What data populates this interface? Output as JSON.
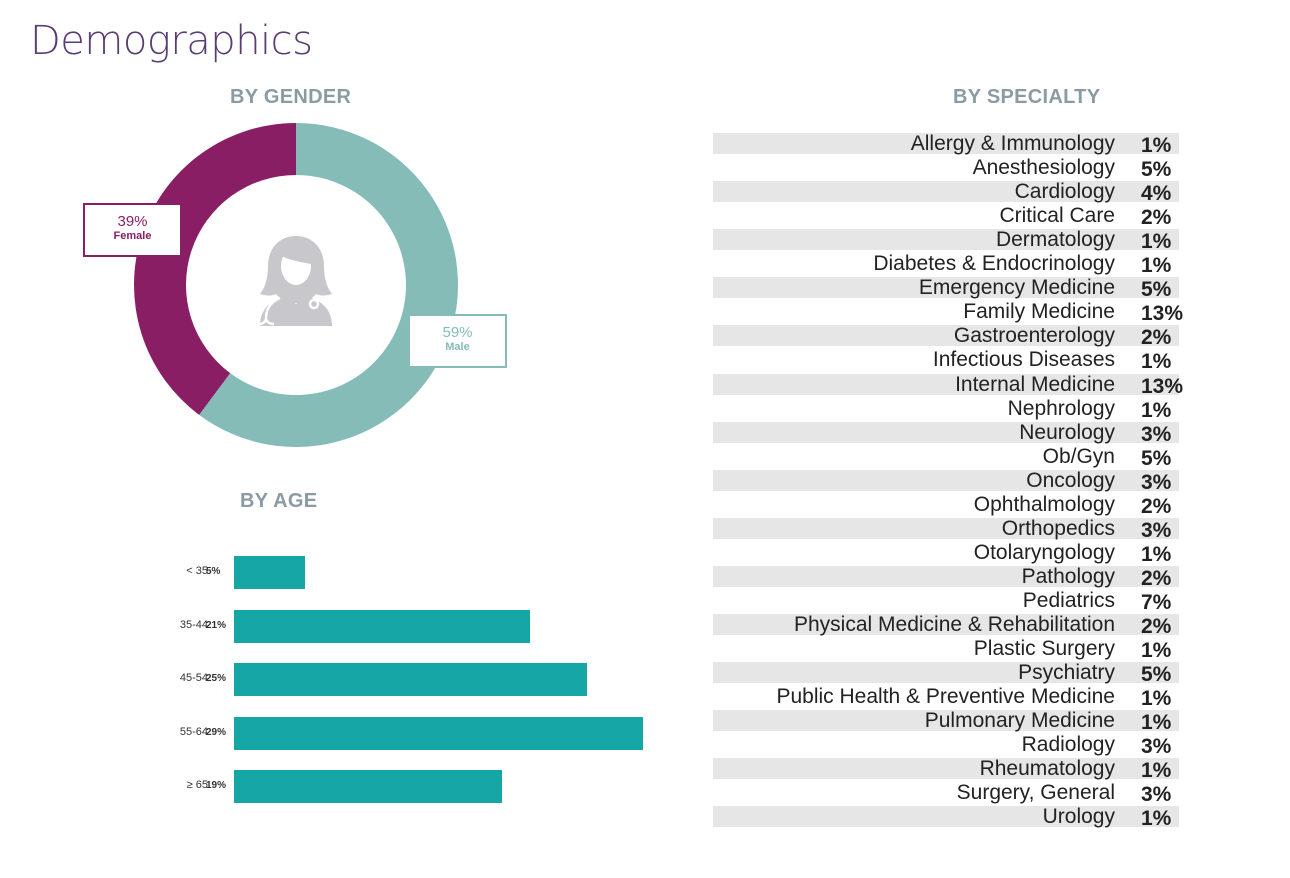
{
  "title": "Demographics",
  "colors": {
    "female": "#8a1e64",
    "male": "#85bcb7",
    "age_bar": "#16a6a6",
    "row_shade": "#e6e6e6",
    "title": "#5a3d72",
    "section_header": "#8b9ba3"
  },
  "chart_data": [
    {
      "type": "pie",
      "variant": "donut",
      "title": "BY GENDER",
      "center_icon": "female-doctor-icon",
      "slices": [
        {
          "label": "Male",
          "value": 59,
          "value_label": "59%",
          "color": "#85bcb7"
        },
        {
          "label": "Female",
          "value": 39,
          "value_label": "39%",
          "color": "#8a1e64"
        }
      ]
    },
    {
      "type": "bar",
      "orientation": "horizontal",
      "title": "BY AGE",
      "categories": [
        "< 35",
        "35-44",
        "45-54",
        "55-64",
        "≥ 65"
      ],
      "values": [
        5,
        21,
        25,
        29,
        19
      ],
      "value_labels": [
        "5%",
        "21%",
        "25%",
        "29%",
        "19%"
      ],
      "grid": false
    },
    {
      "type": "table",
      "title": "BY SPECIALTY",
      "rows": [
        {
          "name": "Allergy & Immunology",
          "value": "1%"
        },
        {
          "name": "Anesthesiology",
          "value": "5%"
        },
        {
          "name": "Cardiology",
          "value": "4%"
        },
        {
          "name": "Critical Care",
          "value": "2%"
        },
        {
          "name": "Dermatology",
          "value": "1%"
        },
        {
          "name": "Diabetes & Endocrinology",
          "value": "1%"
        },
        {
          "name": "Emergency Medicine",
          "value": "5%"
        },
        {
          "name": "Family Medicine",
          "value": "13%"
        },
        {
          "name": "Gastroenterology",
          "value": "2%"
        },
        {
          "name": "Infectious Diseases",
          "value": "1%"
        },
        {
          "name": "Internal Medicine",
          "value": "13%"
        },
        {
          "name": "Nephrology",
          "value": "1%"
        },
        {
          "name": "Neurology",
          "value": "3%"
        },
        {
          "name": "Ob/Gyn",
          "value": "5%"
        },
        {
          "name": "Oncology",
          "value": "3%"
        },
        {
          "name": "Ophthalmology",
          "value": "2%"
        },
        {
          "name": "Orthopedics",
          "value": "3%"
        },
        {
          "name": "Otolaryngology",
          "value": "1%"
        },
        {
          "name": "Pathology",
          "value": "2%"
        },
        {
          "name": "Pediatrics",
          "value": "7%"
        },
        {
          "name": "Physical Medicine & Rehabilitation",
          "value": "2%"
        },
        {
          "name": "Plastic Surgery",
          "value": "1%"
        },
        {
          "name": "Psychiatry",
          "value": "5%"
        },
        {
          "name": "Public Health & Preventive Medicine",
          "value": "1%"
        },
        {
          "name": "Pulmonary Medicine",
          "value": "1%"
        },
        {
          "name": "Radiology",
          "value": "3%"
        },
        {
          "name": "Rheumatology",
          "value": "1%"
        },
        {
          "name": "Surgery, General",
          "value": "3%"
        },
        {
          "name": "Urology",
          "value": "1%"
        }
      ]
    }
  ]
}
